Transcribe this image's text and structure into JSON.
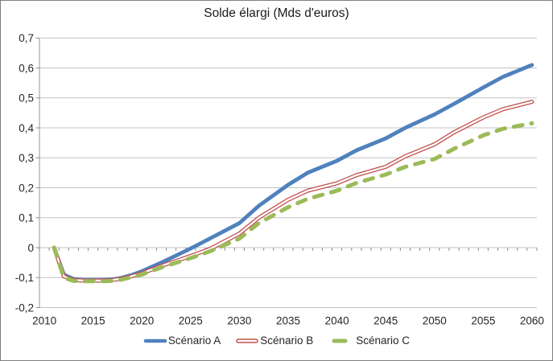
{
  "chart_data": {
    "type": "line",
    "title": "Solde élargi (Mds d'euros)",
    "xlabel": "",
    "ylabel": "",
    "xlim": [
      2010,
      2060
    ],
    "ylim": [
      -0.2,
      0.7
    ],
    "grid": true,
    "legend_position": "bottom",
    "x_ticks": [
      2010,
      2015,
      2020,
      2025,
      2030,
      2035,
      2040,
      2045,
      2050,
      2055,
      2060
    ],
    "y_ticks": [
      {
        "label": "0,7",
        "value": 0.7
      },
      {
        "label": "0,6",
        "value": 0.6
      },
      {
        "label": "0,5",
        "value": 0.5
      },
      {
        "label": "0,4",
        "value": 0.4
      },
      {
        "label": "0,3",
        "value": 0.3
      },
      {
        "label": "0,2",
        "value": 0.2
      },
      {
        "label": "0,1",
        "value": 0.1
      },
      {
        "label": "0",
        "value": 0.0
      },
      {
        "label": "-0,1",
        "value": -0.1
      },
      {
        "label": "-0,2",
        "value": -0.2
      }
    ],
    "x": [
      2011,
      2012,
      2013,
      2014,
      2015,
      2016,
      2017,
      2018,
      2019,
      2020,
      2022,
      2025,
      2027,
      2030,
      2032,
      2035,
      2037,
      2040,
      2042,
      2045,
      2047,
      2050,
      2052,
      2055,
      2057,
      2060
    ],
    "series": [
      {
        "name": "Scénario A",
        "color": "#4F81BD",
        "style": "solid-thick",
        "values": [
          0.0,
          -0.09,
          -0.105,
          -0.108,
          -0.108,
          -0.108,
          -0.106,
          -0.1,
          -0.091,
          -0.079,
          -0.05,
          -0.003,
          0.031,
          0.082,
          0.14,
          0.21,
          0.25,
          0.29,
          0.325,
          0.365,
          0.4,
          0.445,
          0.48,
          0.535,
          0.57,
          0.61
        ]
      },
      {
        "name": "Scénario B",
        "color": "#C0504D",
        "style": "double-outline",
        "values": [
          0.0,
          -0.096,
          -0.108,
          -0.11,
          -0.11,
          -0.11,
          -0.108,
          -0.103,
          -0.095,
          -0.086,
          -0.061,
          -0.028,
          -0.004,
          0.047,
          0.1,
          0.16,
          0.19,
          0.215,
          0.242,
          0.27,
          0.305,
          0.345,
          0.385,
          0.435,
          0.462,
          0.487
        ]
      },
      {
        "name": "Scénario C",
        "color": "#9BBB59",
        "style": "dashed-thick",
        "values": [
          0.0,
          -0.1,
          -0.111,
          -0.112,
          -0.112,
          -0.112,
          -0.111,
          -0.106,
          -0.098,
          -0.09,
          -0.066,
          -0.035,
          -0.012,
          0.03,
          0.082,
          0.135,
          0.163,
          0.19,
          0.216,
          0.244,
          0.27,
          0.296,
          0.33,
          0.375,
          0.397,
          0.415
        ]
      }
    ],
    "colors": {
      "gridline": "#c3c3c3",
      "axis": "#a6a6a6",
      "tick": "#8c8c8c",
      "text": "#262626"
    }
  }
}
